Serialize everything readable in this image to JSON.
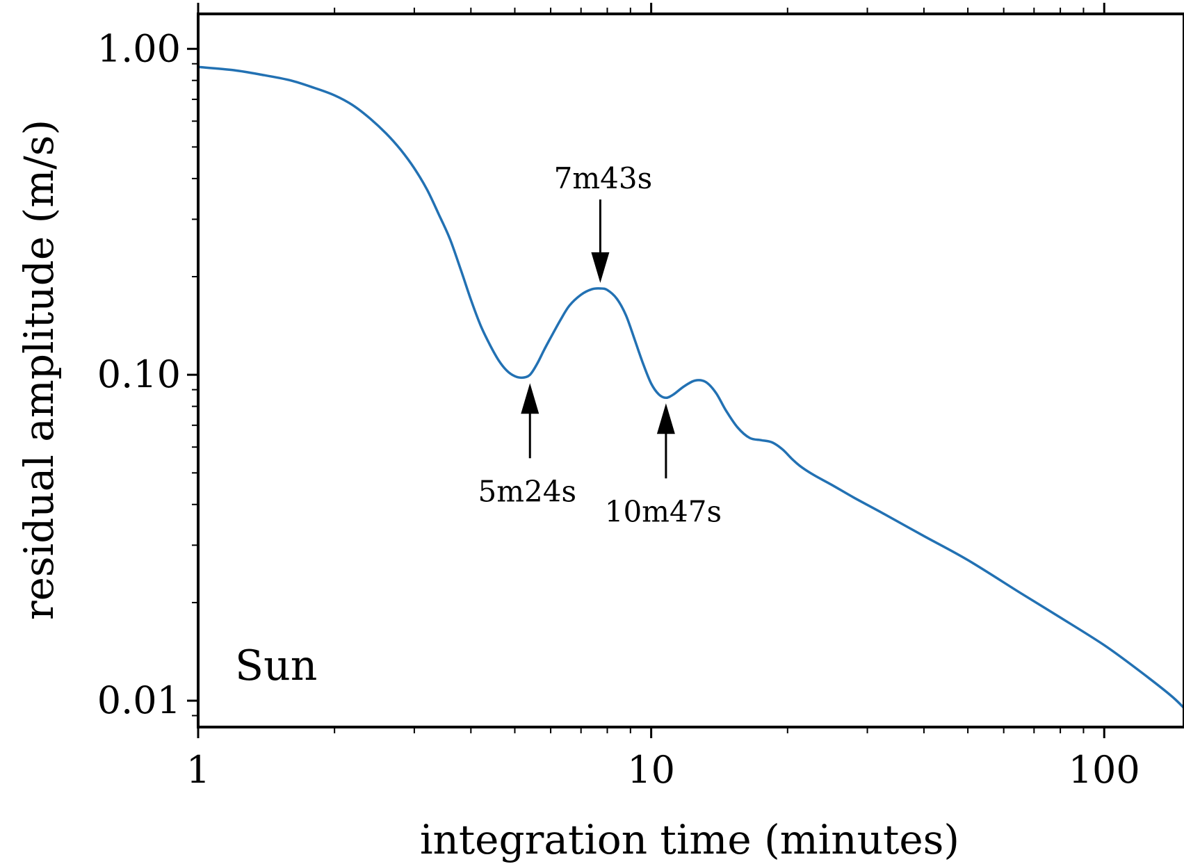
{
  "chart_data": {
    "type": "line",
    "title": "",
    "xlabel": "integration time (minutes)",
    "ylabel": "residual amplitude (m/s)",
    "xscale": "log",
    "yscale": "log",
    "xlim": [
      1,
      150
    ],
    "ylim": [
      0.0083,
      1.28
    ],
    "grid": false,
    "x_ticks": [
      {
        "value": 1,
        "label": "1"
      },
      {
        "value": 10,
        "label": "10"
      },
      {
        "value": 100,
        "label": "100"
      }
    ],
    "y_ticks": [
      {
        "value": 0.01,
        "label": "0.01"
      },
      {
        "value": 0.1,
        "label": "0.10"
      },
      {
        "value": 1,
        "label": "1.00"
      }
    ],
    "series_color": "#2271b3",
    "series": [
      {
        "x": [
          1.0,
          1.2,
          1.4,
          1.6,
          1.8,
          2.0,
          2.2,
          2.4,
          2.6,
          2.8,
          3.0,
          3.2,
          3.4,
          3.6,
          3.8,
          4.0,
          4.2,
          4.4,
          4.6,
          4.8,
          5.0,
          5.2,
          5.4,
          5.6,
          5.8,
          6.0,
          6.3,
          6.6,
          7.0,
          7.4,
          7.72,
          8.0,
          8.4,
          8.8,
          9.2,
          9.6,
          10.0,
          10.4,
          10.78,
          11.2,
          11.8,
          12.5,
          13.2,
          13.9,
          14.6,
          15.5,
          16.5,
          17.5,
          18.5,
          19.5,
          20.5,
          21.5,
          23.0,
          25.0,
          28.0,
          32.0,
          40.0,
          50.0,
          65.0,
          80.0,
          100.0,
          120.0,
          140.0,
          150.0
        ],
        "y": [
          0.88,
          0.86,
          0.83,
          0.8,
          0.76,
          0.72,
          0.67,
          0.61,
          0.55,
          0.49,
          0.43,
          0.37,
          0.31,
          0.26,
          0.21,
          0.17,
          0.142,
          0.124,
          0.111,
          0.103,
          0.099,
          0.098,
          0.1,
          0.108,
          0.119,
          0.13,
          0.147,
          0.163,
          0.176,
          0.183,
          0.184,
          0.182,
          0.171,
          0.152,
          0.128,
          0.108,
          0.094,
          0.087,
          0.085,
          0.087,
          0.092,
          0.096,
          0.095,
          0.088,
          0.078,
          0.069,
          0.064,
          0.063,
          0.062,
          0.059,
          0.055,
          0.052,
          0.049,
          0.046,
          0.042,
          0.038,
          0.032,
          0.027,
          0.0215,
          0.018,
          0.0148,
          0.0123,
          0.0104,
          0.0095
        ]
      }
    ],
    "annotations": [
      {
        "text": "5m24s",
        "x": 5.4,
        "y": 0.098,
        "arrow": "up"
      },
      {
        "text": "7m43s",
        "x": 7.72,
        "y": 0.184,
        "arrow": "down"
      },
      {
        "text": "10m47s",
        "x": 10.78,
        "y": 0.085,
        "arrow": "up"
      }
    ],
    "panel_label": "Sun"
  }
}
